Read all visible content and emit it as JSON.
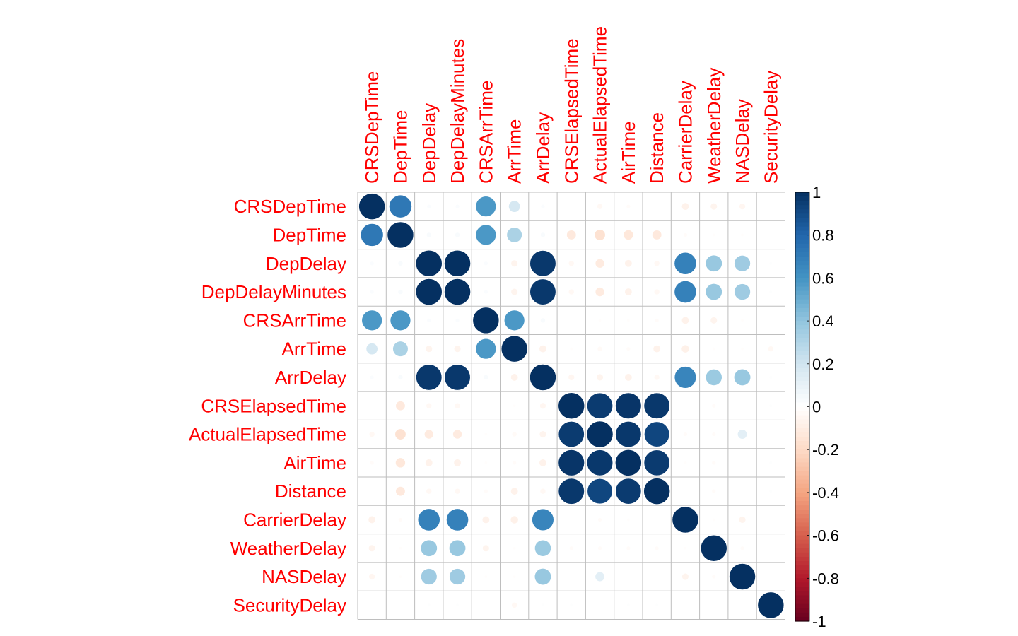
{
  "chart_data": {
    "type": "heatmap",
    "style": "circle",
    "variables": [
      "CRSDepTime",
      "DepTime",
      "DepDelay",
      "DepDelayMinutes",
      "CRSArrTime",
      "ArrTime",
      "ArrDelay",
      "CRSElapsedTime",
      "ActualElapsedTime",
      "AirTime",
      "Distance",
      "CarrierDelay",
      "WeatherDelay",
      "NASDelay",
      "SecurityDelay"
    ],
    "matrix": [
      [
        1.0,
        0.72,
        0.02,
        0.02,
        0.58,
        0.18,
        0.02,
        0.0,
        -0.04,
        -0.02,
        0.0,
        -0.07,
        -0.06,
        -0.05,
        0.0
      ],
      [
        0.72,
        1.0,
        0.03,
        0.03,
        0.58,
        0.32,
        0.03,
        -0.12,
        -0.16,
        -0.13,
        -0.12,
        -0.02,
        -0.01,
        -0.01,
        0.0
      ],
      [
        0.02,
        0.03,
        1.0,
        1.0,
        0.02,
        -0.06,
        0.97,
        -0.04,
        -0.11,
        -0.07,
        -0.04,
        0.68,
        0.38,
        0.36,
        0.01
      ],
      [
        0.02,
        0.03,
        1.0,
        1.0,
        0.02,
        -0.06,
        0.97,
        -0.04,
        -0.11,
        -0.07,
        -0.04,
        0.68,
        0.38,
        0.36,
        0.01
      ],
      [
        0.58,
        0.58,
        0.02,
        0.02,
        1.0,
        0.58,
        0.03,
        0.0,
        -0.01,
        -0.01,
        -0.02,
        -0.07,
        -0.06,
        -0.01,
        0.0
      ],
      [
        0.18,
        0.32,
        -0.06,
        -0.06,
        0.58,
        1.0,
        -0.07,
        -0.01,
        -0.03,
        -0.02,
        -0.07,
        -0.08,
        -0.01,
        -0.01,
        -0.04
      ],
      [
        0.02,
        0.03,
        0.97,
        0.97,
        0.03,
        -0.07,
        1.0,
        -0.05,
        -0.06,
        -0.07,
        -0.04,
        0.66,
        0.37,
        0.38,
        0.01
      ],
      [
        0.0,
        -0.12,
        -0.04,
        -0.04,
        0.0,
        -0.01,
        -0.05,
        1.0,
        0.96,
        0.98,
        0.97,
        0.0,
        -0.02,
        0.0,
        0.01
      ],
      [
        -0.04,
        -0.16,
        -0.11,
        -0.11,
        -0.01,
        -0.03,
        -0.06,
        0.96,
        1.0,
        0.97,
        0.92,
        -0.02,
        -0.02,
        0.12,
        0.0
      ],
      [
        -0.02,
        -0.13,
        -0.07,
        -0.07,
        -0.01,
        -0.02,
        -0.07,
        0.98,
        0.97,
        1.0,
        0.96,
        -0.01,
        -0.02,
        0.0,
        0.01
      ],
      [
        0.0,
        -0.12,
        -0.04,
        -0.04,
        -0.02,
        -0.07,
        -0.04,
        0.97,
        0.92,
        0.96,
        1.0,
        0.0,
        -0.02,
        0.0,
        0.01
      ],
      [
        -0.07,
        -0.02,
        0.68,
        0.68,
        -0.07,
        -0.08,
        0.66,
        0.0,
        -0.02,
        -0.01,
        0.0,
        1.0,
        -0.01,
        -0.06,
        0.0
      ],
      [
        -0.06,
        -0.01,
        0.38,
        0.38,
        -0.06,
        -0.01,
        0.37,
        -0.02,
        -0.02,
        -0.02,
        -0.02,
        -0.01,
        1.0,
        -0.02,
        0.0
      ],
      [
        -0.05,
        -0.01,
        0.36,
        0.36,
        -0.01,
        -0.01,
        0.38,
        0.0,
        0.12,
        0.0,
        0.0,
        -0.06,
        -0.02,
        1.0,
        0.0
      ],
      [
        0.0,
        0.0,
        0.01,
        0.01,
        0.0,
        -0.04,
        0.01,
        0.01,
        0.0,
        0.01,
        0.01,
        0.0,
        0.0,
        0.0,
        1.0
      ]
    ],
    "colorbar": {
      "range": [
        -1,
        1
      ],
      "tick_labels": [
        "1",
        "0.8",
        "0.6",
        "0.4",
        "0.2",
        "0",
        "-0.2",
        "-0.4",
        "-0.6",
        "-0.8",
        "-1"
      ],
      "tick_values": [
        1,
        0.8,
        0.6,
        0.4,
        0.2,
        0,
        -0.2,
        -0.4,
        -0.6,
        -0.8,
        -1
      ],
      "colors": [
        "#67001F",
        "#B2182B",
        "#D6604D",
        "#F4A582",
        "#FDDBC7",
        "#FFFFFF",
        "#D1E5F0",
        "#92C5DE",
        "#4393C3",
        "#2166AC",
        "#053061"
      ]
    },
    "label_color": "#FF0000",
    "grid_color": "#BEBEBE",
    "title": "",
    "xlabel": "",
    "ylabel": ""
  }
}
